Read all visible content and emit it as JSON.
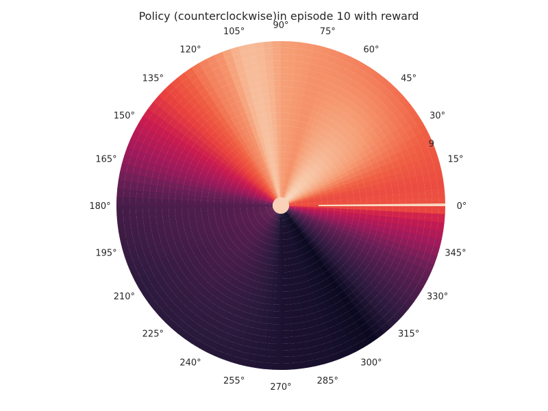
{
  "chart_data": {
    "type": "heatmap",
    "projection": "polar",
    "title": "Policy (counterclockwise)in episode 10 with reward",
    "angle_ticks": [
      "0°",
      "15°",
      "30°",
      "45°",
      "60°",
      "75°",
      "90°",
      "105°",
      "120°",
      "135°",
      "150°",
      "165°",
      "180°",
      "195°",
      "210°",
      "225°",
      "240°",
      "255°",
      "270°",
      "285°",
      "300°",
      "315°",
      "330°",
      "345°"
    ],
    "angle_tick_values_deg": [
      0,
      15,
      30,
      45,
      60,
      75,
      90,
      105,
      120,
      135,
      150,
      165,
      180,
      195,
      210,
      225,
      240,
      255,
      270,
      285,
      300,
      315,
      330,
      345
    ],
    "radial_tick_labels": [
      "9"
    ],
    "radial_tick_angle_deg": 22.5,
    "grid": false,
    "colormap": "rocket",
    "colormap_stops": [
      "#03051a",
      "#2b1a3d",
      "#4c1d4b",
      "#701f57",
      "#a11a5b",
      "#cb1b4f",
      "#e83f3f",
      "#f06043",
      "#f69c73",
      "#f7c6a6",
      "#faebdd"
    ],
    "angular_profile": {
      "angles_deg": [
        0,
        8,
        30,
        60,
        90,
        105,
        120,
        135,
        150,
        165,
        180,
        210,
        250,
        290,
        305,
        335,
        355,
        360
      ],
      "values": [
        0.66,
        0.64,
        0.7,
        0.75,
        0.81,
        0.82,
        0.75,
        0.62,
        0.48,
        0.36,
        0.18,
        0.1,
        0.08,
        0.05,
        0.02,
        0.26,
        0.5,
        0.66
      ]
    }
  }
}
